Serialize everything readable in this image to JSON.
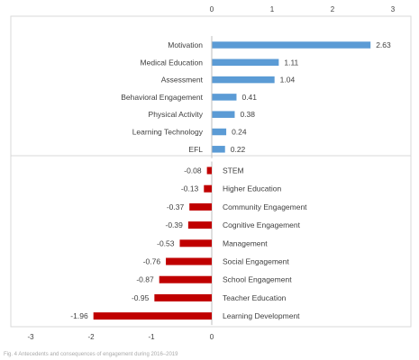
{
  "chart_data": [
    {
      "type": "bar",
      "orientation": "horizontal",
      "categories": [
        "Motivation",
        "Medical Education",
        "Assessment",
        "Behavioral Engagement",
        "Physical Activity",
        "Learning Technology",
        "EFL"
      ],
      "values": [
        2.63,
        1.11,
        1.04,
        0.41,
        0.38,
        0.24,
        0.22
      ],
      "value_labels": [
        "2.63",
        "1.11",
        "1.04",
        "0.41",
        "0.38",
        "0.24",
        "0.22"
      ],
      "xlim": [
        0,
        3
      ],
      "xticks": [
        "0",
        "1",
        "2",
        "3"
      ],
      "axis_position": "top",
      "grid": false,
      "color": "#5b9bd5"
    },
    {
      "type": "bar",
      "orientation": "horizontal",
      "categories": [
        "STEM",
        "Higher Education",
        "Community Engagement",
        "Cognitive Engagement",
        "Management",
        "Social Engagement",
        "School Engagement",
        "Teacher Education",
        "Learning Development"
      ],
      "values": [
        -0.08,
        -0.13,
        -0.37,
        -0.39,
        -0.53,
        -0.76,
        -0.87,
        -0.95,
        -1.96
      ],
      "value_labels": [
        "-0.08",
        "-0.13",
        "-0.37",
        "-0.39",
        "-0.53",
        "-0.76",
        "-0.87",
        "-0.95",
        "-1.96"
      ],
      "xlim": [
        -3,
        0
      ],
      "xticks": [
        "-3",
        "-2",
        "-1",
        "0"
      ],
      "axis_position": "bottom",
      "grid": false,
      "color": "#c00000"
    }
  ],
  "caption": "Fig. 4  Antecedents and consequences of engagement during 2016–2019"
}
